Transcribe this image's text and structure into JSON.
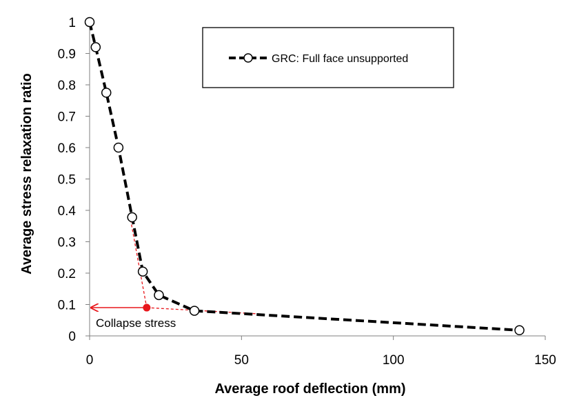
{
  "chart_data": {
    "type": "line",
    "title": "",
    "xlabel": "Average roof deflection (mm)",
    "ylabel": "Average stress relaxation ratio",
    "xlim": [
      0,
      150
    ],
    "ylim": [
      0,
      1
    ],
    "x_ticks": [
      "0",
      "50",
      "100",
      "150"
    ],
    "y_ticks": [
      "0",
      "0.1",
      "0.2",
      "0.3",
      "0.4",
      "0.5",
      "0.6",
      "0.7",
      "0.8",
      "0.9",
      "1"
    ],
    "grid": false,
    "legend_position": "top-right",
    "series": [
      {
        "name": "GRC: Full face unsupported",
        "color": "#000000",
        "line_style": "dashed",
        "marker": "open-circle",
        "x": [
          0,
          2,
          5.5,
          9.5,
          14,
          17.5,
          22.8,
          34.5,
          141.5
        ],
        "y": [
          1,
          0.92,
          0.775,
          0.6,
          0.378,
          0.205,
          0.13,
          0.08,
          0.018
        ]
      }
    ],
    "annotations": {
      "collapse_label": "Collapse stress",
      "collapse_point": {
        "x": 18.8,
        "y": 0.09
      },
      "collapse_color": "#e8161b",
      "tangent_steep": {
        "x": [
          13.2,
          18.8
        ],
        "y": [
          0.385,
          0.09
        ]
      },
      "tangent_flat": {
        "x": [
          18.8,
          56
        ],
        "y": [
          0.09,
          0.07
        ]
      },
      "arrow_to_axis": {
        "x": [
          18.8,
          0
        ],
        "y": [
          0.09,
          0.09
        ]
      }
    }
  }
}
